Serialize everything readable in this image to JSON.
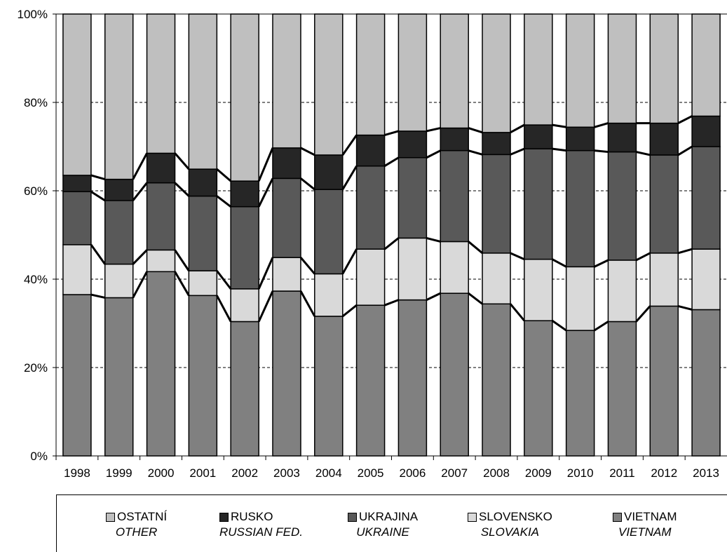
{
  "chart_data": {
    "type": "bar",
    "stacked": true,
    "normalized": true,
    "categories": [
      "1998",
      "1999",
      "2000",
      "2001",
      "2002",
      "2003",
      "2004",
      "2005",
      "2006",
      "2007",
      "2008",
      "2009",
      "2010",
      "2011",
      "2012",
      "2013"
    ],
    "yticks": [
      "0%",
      "20%",
      "40%",
      "60%",
      "80%",
      "100%"
    ],
    "ylim": [
      0,
      100
    ],
    "grid": true,
    "legend_position": "bottom",
    "series": [
      {
        "name": "VIETNAM",
        "name_en": "VIETNAM",
        "color": "#808080",
        "values": [
          36.5,
          35.8,
          41.7,
          36.3,
          30.4,
          37.3,
          31.6,
          34.1,
          35.3,
          36.8,
          34.4,
          30.6,
          28.4,
          30.4,
          33.9,
          33.1
        ]
      },
      {
        "name": "SLOVENSKO",
        "name_en": "SLOVAKIA",
        "color": "#d9d9d9",
        "values": [
          11.3,
          7.6,
          4.9,
          5.6,
          7.4,
          7.6,
          9.6,
          12.7,
          14.0,
          11.7,
          11.5,
          13.9,
          14.4,
          13.9,
          12.0,
          13.7
        ]
      },
      {
        "name": "UKRAJINA",
        "name_en": "UKRAINE",
        "color": "#595959",
        "values": [
          12.0,
          14.4,
          15.2,
          16.9,
          18.6,
          17.9,
          19.1,
          18.8,
          18.2,
          20.6,
          22.3,
          25.0,
          26.3,
          24.5,
          22.2,
          23.2
        ]
      },
      {
        "name": "RUSKO",
        "name_en": "RUSSIAN FED.",
        "color": "#262626",
        "values": [
          3.7,
          4.8,
          6.7,
          6.1,
          5.8,
          6.9,
          7.8,
          7.0,
          6.0,
          5.1,
          5.0,
          5.4,
          5.3,
          6.5,
          7.2,
          6.9
        ]
      },
      {
        "name": "OSTATNÍ",
        "name_en": "OTHER",
        "color": "#bfbfbf",
        "values": [
          36.5,
          37.4,
          31.5,
          35.1,
          37.8,
          30.3,
          31.9,
          27.4,
          26.5,
          25.8,
          26.8,
          25.1,
          25.6,
          24.7,
          24.7,
          23.1
        ]
      }
    ]
  },
  "legend": {
    "items": [
      {
        "label": "OSTATNÍ",
        "sub": "OTHER",
        "color": "#bfbfbf"
      },
      {
        "label": "RUSKO",
        "sub": "RUSSIAN FED.",
        "color": "#262626"
      },
      {
        "label": "UKRAJINA",
        "sub": "UKRAINE",
        "color": "#595959"
      },
      {
        "label": "SLOVENSKO",
        "sub": "SLOVAKIA",
        "color": "#d9d9d9"
      },
      {
        "label": "VIETNAM",
        "sub": "VIETNAM",
        "color": "#808080"
      }
    ]
  }
}
